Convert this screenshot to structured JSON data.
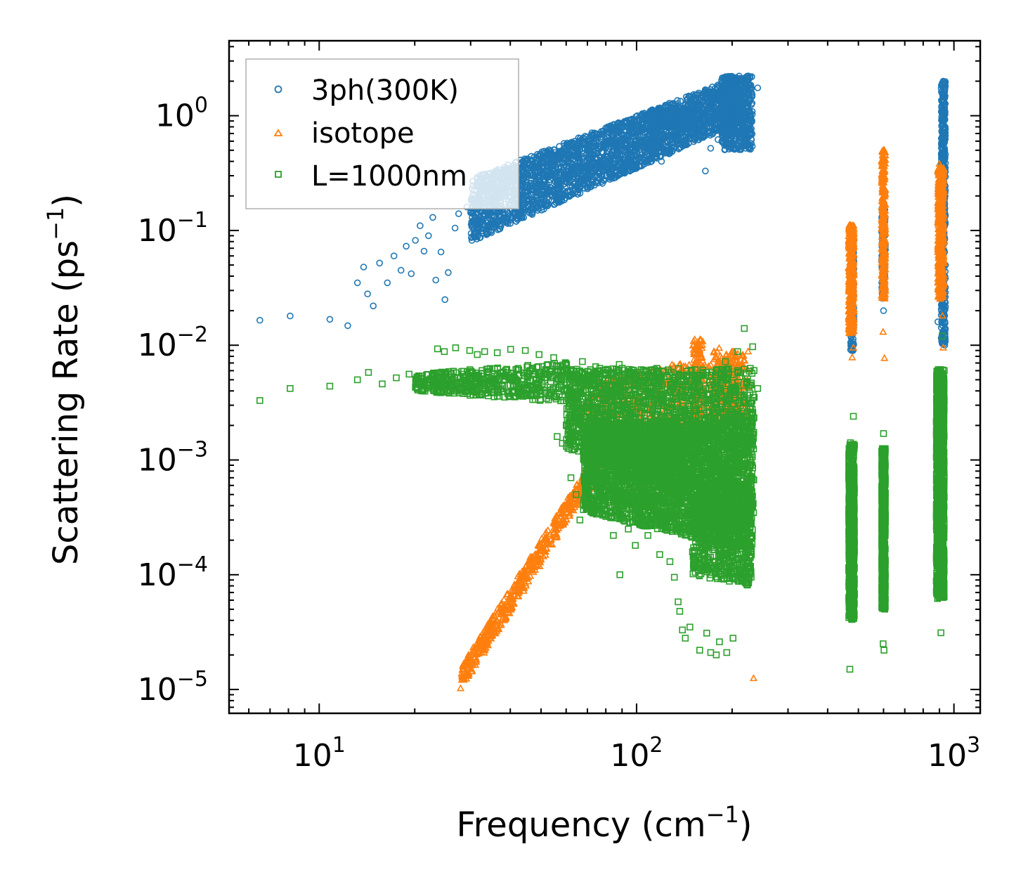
{
  "chart_data": {
    "type": "scatter",
    "title": "",
    "xlabel": "Frequency (cm",
    "xlabel_sup": "−1",
    "xlabel_end": ")",
    "ylabel": "Scattering Rate (ps",
    "ylabel_sup": "−1",
    "ylabel_end": ")",
    "xscale": "log",
    "yscale": "log",
    "xlim": [
      5.2,
      1210
    ],
    "ylim": [
      6.2e-06,
      4.5
    ],
    "x_ticks": [
      {
        "value": 10,
        "base": "10",
        "exp": "1"
      },
      {
        "value": 100,
        "base": "10",
        "exp": "2"
      },
      {
        "value": 1000,
        "base": "10",
        "exp": "3"
      }
    ],
    "y_ticks": [
      {
        "value": 1,
        "base": "10",
        "exp": "0"
      },
      {
        "value": 0.1,
        "base": "10",
        "exp": "−1"
      },
      {
        "value": 0.01,
        "base": "10",
        "exp": "−2"
      },
      {
        "value": 0.001,
        "base": "10",
        "exp": "−3"
      },
      {
        "value": 0.0001,
        "base": "10",
        "exp": "−4"
      },
      {
        "value": 1e-05,
        "base": "10",
        "exp": "−5"
      }
    ],
    "legend_position": "top-left",
    "series": [
      {
        "name": "3ph(300K)",
        "marker": "circle",
        "color": "#1f77b4",
        "points": [
          [
            6.5,
            0.0165
          ],
          [
            8.1,
            0.018
          ],
          [
            10.8,
            0.0168
          ],
          [
            12.3,
            0.0148
          ],
          [
            13.2,
            0.035
          ],
          [
            13.8,
            0.048
          ],
          [
            14.2,
            0.028
          ],
          [
            14.8,
            0.022
          ],
          [
            15.5,
            0.052
          ],
          [
            16.4,
            0.035
          ],
          [
            17.2,
            0.06
          ],
          [
            18.1,
            0.045
          ],
          [
            18.8,
            0.073
          ],
          [
            19.5,
            0.042
          ],
          [
            20.1,
            0.082
          ],
          [
            20.8,
            0.11
          ],
          [
            21.4,
            0.066
          ],
          [
            22.1,
            0.09
          ],
          [
            22.8,
            0.13
          ],
          [
            23.3,
            0.037
          ],
          [
            24.2,
            0.065
          ],
          [
            24.9,
            0.025
          ],
          [
            25.5,
            0.043
          ],
          [
            26.8,
            0.105
          ],
          [
            27.5,
            0.14
          ],
          [
            29.2,
            0.16
          ],
          [
            30.8,
            0.12
          ],
          [
            32.5,
            0.17
          ],
          [
            34.1,
            0.21
          ],
          [
            35.8,
            0.15
          ],
          [
            37.4,
            0.25
          ],
          [
            39.6,
            0.2
          ],
          [
            41.8,
            0.28
          ],
          [
            44.2,
            0.32
          ],
          [
            47.1,
            0.23
          ],
          [
            50.3,
            0.35
          ],
          [
            53.7,
            0.3
          ],
          [
            57.2,
            0.45
          ],
          [
            61.8,
            0.38
          ],
          [
            66.2,
            0.5
          ],
          [
            70.5,
            0.29
          ],
          [
            74.8,
            0.55
          ],
          [
            79.1,
            0.42
          ],
          [
            84.2,
            0.62
          ],
          [
            90.5,
            0.36
          ],
          [
            97.4,
            0.48
          ],
          [
            104.6,
            0.56
          ],
          [
            112.3,
            0.72
          ],
          [
            119.8,
            0.4
          ],
          [
            126.5,
            0.95
          ],
          [
            133.1,
            0.85
          ],
          [
            140.6,
            1.05
          ],
          [
            148.2,
            0.72
          ],
          [
            156.4,
            0.62
          ],
          [
            164.8,
            0.33
          ],
          [
            171.2,
            0.52
          ],
          [
            180.5,
            0.62
          ],
          [
            190.3,
            1.3
          ],
          [
            198.7,
            2.2
          ],
          [
            205.4,
            1.6
          ],
          [
            212.8,
            1.1
          ],
          [
            221.5,
            1.3
          ],
          [
            240.8,
            1.75
          ],
          [
            480,
            0.009
          ],
          [
            482,
            0.05
          ],
          [
            478,
            0.11
          ],
          [
            598,
            0.15
          ],
          [
            603,
            0.06
          ],
          [
            600,
            0.02
          ],
          [
            925,
            2.0
          ],
          [
            930,
            1.1
          ],
          [
            935,
            0.5
          ],
          [
            915,
            0.14
          ],
          [
            902,
            0.04
          ],
          [
            890,
            0.016
          ]
        ],
        "bands": [
          {
            "x_range": [
              30,
              215
            ],
            "log_y_lo": [
              -1.1,
              -0.05
            ],
            "log_y_hi": [
              -0.55,
              0.35
            ],
            "count": 2800
          },
          {
            "x_range": [
              185,
              232
            ],
            "log_y_lo": [
              -0.3,
              -0.3
            ],
            "log_y_hi": [
              0.35,
              0.35
            ],
            "count": 500
          },
          {
            "x_range": [
              110,
              150
            ],
            "log_y_lo": [
              -0.1,
              -0.1
            ],
            "log_y_hi": [
              0.05,
              0.05
            ],
            "count": 500
          },
          {
            "x_range": [
              472,
              484
            ],
            "log_y_lo": [
              -2.05,
              -2.05
            ],
            "log_y_hi": [
              -1.05,
              -1.05
            ],
            "count": 150
          },
          {
            "x_range": [
              592,
              608
            ],
            "log_y_lo": [
              -1.6,
              -1.6
            ],
            "log_y_hi": [
              -0.8,
              -0.8
            ],
            "count": 150
          },
          {
            "x_range": [
              912,
              940
            ],
            "log_y_lo": [
              -2.0,
              -2.0
            ],
            "log_y_hi": [
              0.3,
              0.3
            ],
            "count": 500
          }
        ]
      },
      {
        "name": "isotope",
        "marker": "triangle",
        "color": "#ff7f0e",
        "points": [
          [
            27.9,
            1.02e-05
          ],
          [
            29.5,
            1.35e-05
          ],
          [
            31.2,
            1.75e-05
          ],
          [
            33.4,
            2.3e-05
          ],
          [
            36.2,
            3.2e-05
          ],
          [
            39.8,
            4.6e-05
          ],
          [
            44.1,
            7.2e-05
          ],
          [
            49.5,
            0.000118
          ],
          [
            55.8,
            0.00021
          ],
          [
            62.3,
            0.00038
          ],
          [
            68.4,
            0.00068
          ],
          [
            75.2,
            0.0011
          ],
          [
            83.6,
            0.0016
          ],
          [
            92.4,
            0.0022
          ],
          [
            101.3,
            0.0028
          ],
          [
            111.5,
            0.0035
          ],
          [
            121.8,
            0.0045
          ],
          [
            131.6,
            0.0055
          ],
          [
            140.4,
            0.006
          ],
          [
            152.4,
            0.0085
          ],
          [
            158.6,
            0.0112
          ],
          [
            165.2,
            0.0065
          ],
          [
            176.8,
            0.0078
          ],
          [
            182.1,
            0.0094
          ],
          [
            189.4,
            0.007
          ],
          [
            198.2,
            0.0072
          ],
          [
            215.5,
            0.0045
          ],
          [
            228.4,
            0.00018
          ],
          [
            233.8,
            1.25e-05
          ],
          [
            470,
            0.11
          ],
          [
            475,
            0.075
          ],
          [
            480,
            0.018
          ],
          [
            478,
            0.0078
          ],
          [
            482,
            0.0095
          ],
          [
            600,
            0.5
          ],
          [
            596,
            0.12
          ],
          [
            602,
            0.045
          ],
          [
            598,
            0.013
          ],
          [
            604,
            0.0077
          ],
          [
            900,
            0.38
          ],
          [
            905,
            0.2
          ],
          [
            910,
            0.1
          ],
          [
            915,
            0.044
          ],
          [
            920,
            0.018
          ],
          [
            925,
            0.0095
          ]
        ],
        "bands": [
          {
            "x_range": [
              28,
              70
            ],
            "log_y_lo": [
              -5.0,
              -3.25
            ],
            "log_y_hi": [
              -4.8,
              -3.05
            ],
            "count": 500
          },
          {
            "x_range": [
              68,
              225
            ],
            "log_y_lo": [
              -3.3,
              -2.6
            ],
            "log_y_hi": [
              -2.3,
              -2.05
            ],
            "count": 700
          },
          {
            "x_range": [
              150,
              162
            ],
            "log_y_lo": [
              -2.8,
              -2.8
            ],
            "log_y_hi": [
              -1.95,
              -1.95
            ],
            "count": 150
          },
          {
            "x_range": [
              175,
              210
            ],
            "log_y_lo": [
              -2.6,
              -2.6
            ],
            "log_y_hi": [
              -2.05,
              -2.05
            ],
            "count": 150
          },
          {
            "x_range": [
              466,
              484
            ],
            "log_y_lo": [
              -1.9,
              -1.9
            ],
            "log_y_hi": [
              -0.95,
              -0.95
            ],
            "count": 400
          },
          {
            "x_range": [
              592,
              608
            ],
            "log_y_lo": [
              -1.6,
              -1.6
            ],
            "log_y_hi": [
              -0.3,
              -0.3
            ],
            "count": 300
          },
          {
            "x_range": [
              890,
              930
            ],
            "log_y_lo": [
              -1.6,
              -1.6
            ],
            "log_y_hi": [
              -0.45,
              -0.45
            ],
            "count": 500
          }
        ]
      },
      {
        "name": "L=1000nm",
        "marker": "square",
        "color": "#2ca02c",
        "points": [
          [
            6.5,
            0.0033
          ],
          [
            8.1,
            0.0042
          ],
          [
            10.8,
            0.0044
          ],
          [
            13.2,
            0.005
          ],
          [
            14.3,
            0.0058
          ],
          [
            15.8,
            0.0046
          ],
          [
            17.5,
            0.0052
          ],
          [
            19.2,
            0.0056
          ],
          [
            20.1,
            0.0043
          ],
          [
            22.4,
            0.0051
          ],
          [
            23.6,
            0.0093
          ],
          [
            24.8,
            0.0088
          ],
          [
            26.9,
            0.0095
          ],
          [
            29.8,
            0.009
          ],
          [
            31.5,
            0.0083
          ],
          [
            33.2,
            0.0088
          ],
          [
            36.4,
            0.0086
          ],
          [
            40.1,
            0.0092
          ],
          [
            44.6,
            0.009
          ],
          [
            49.3,
            0.0083
          ],
          [
            54.8,
            0.0078
          ],
          [
            60.2,
            0.0068
          ],
          [
            67.5,
            0.0072
          ],
          [
            74.3,
            0.0065
          ],
          [
            81.6,
            0.006
          ],
          [
            88.2,
            0.0068
          ],
          [
            97.5,
            0.0058
          ],
          [
            108.3,
            0.0055
          ],
          [
            121.4,
            0.0059
          ],
          [
            132.2,
            0.0052
          ],
          [
            146.8,
            0.0052
          ],
          [
            165.4,
            0.0055
          ],
          [
            178.2,
            0.006
          ],
          [
            190.5,
            0.0072
          ],
          [
            208.3,
            0.0088
          ],
          [
            218.5,
            0.014
          ],
          [
            232.2,
            0.0097
          ],
          [
            240.8,
            0.0042
          ],
          [
            56.2,
            0.0016
          ],
          [
            58.4,
            0.0014
          ],
          [
            62.1,
            0.0007
          ],
          [
            64.5,
            0.0005
          ],
          [
            66.3,
            0.0003
          ],
          [
            78.2,
            0.00033
          ],
          [
            84.5,
            0.00022
          ],
          [
            88.6,
            0.0001
          ],
          [
            94.2,
            0.00025
          ],
          [
            99.1,
            0.00018
          ],
          [
            108.6,
            0.00022
          ],
          [
            118.3,
            0.00015
          ],
          [
            127.4,
            0.00013
          ],
          [
            131.5,
            9.5e-05
          ],
          [
            135.2,
            5.8e-05
          ],
          [
            136.8,
            4.8e-05
          ],
          [
            139.5,
            3.3e-05
          ],
          [
            142.4,
            2.8e-05
          ],
          [
            147.2,
            3.5e-05
          ],
          [
            158.1,
            2.2e-05
          ],
          [
            166.4,
            3.1e-05
          ],
          [
            171.2,
            2.1e-05
          ],
          [
            178.3,
            2e-05
          ],
          [
            182.5,
            2.6e-05
          ],
          [
            192.4,
            2.1e-05
          ],
          [
            201.3,
            2.8e-05
          ],
          [
            210.5,
            0.000102
          ],
          [
            220.3,
            0.0001
          ],
          [
            480,
            0.0012
          ],
          [
            476,
            0.00025
          ],
          [
            474,
            4.5e-05
          ],
          [
            470,
            1.5e-05
          ],
          [
            482,
            0.0024
          ],
          [
            600,
            0.0017
          ],
          [
            596,
            0.00032
          ],
          [
            598,
            2.5e-05
          ],
          [
            602,
            2.2e-05
          ],
          [
            905,
            0.0025
          ],
          [
            900,
            0.0004
          ],
          [
            895,
            7.2e-05
          ],
          [
            910,
            3.12e-05
          ],
          [
            920,
            0.012
          ],
          [
            888,
            6.2e-05
          ]
        ],
        "bands": [
          {
            "x_range": [
              20,
              60
            ],
            "log_y_lo": [
              -2.4,
              -2.5
            ],
            "log_y_hi": [
              -2.25,
              -2.15
            ],
            "count": 500
          },
          {
            "x_range": [
              60,
              235
            ],
            "log_y_lo": [
              -2.9,
              -3.6
            ],
            "log_y_hi": [
              -2.2,
              -2.2
            ],
            "count": 2200
          },
          {
            "x_range": [
              68,
              232
            ],
            "log_y_lo": [
              -3.45,
              -3.8
            ],
            "log_y_hi": [
              -2.7,
              -2.6
            ],
            "count": 3000
          },
          {
            "x_range": [
              150,
              230
            ],
            "log_y_lo": [
              -4.0,
              -4.1
            ],
            "log_y_hi": [
              -3.3,
              -3.3
            ],
            "count": 600
          },
          {
            "x_range": [
              466,
              486
            ],
            "log_y_lo": [
              -4.4,
              -4.4
            ],
            "log_y_hi": [
              -2.85,
              -2.85
            ],
            "count": 700
          },
          {
            "x_range": [
              592,
              608
            ],
            "log_y_lo": [
              -4.3,
              -4.3
            ],
            "log_y_hi": [
              -2.9,
              -2.9
            ],
            "count": 700
          },
          {
            "x_range": [
              880,
              932
            ],
            "log_y_lo": [
              -4.2,
              -4.2
            ],
            "log_y_hi": [
              -2.2,
              -2.2
            ],
            "count": 1300
          }
        ]
      }
    ]
  }
}
